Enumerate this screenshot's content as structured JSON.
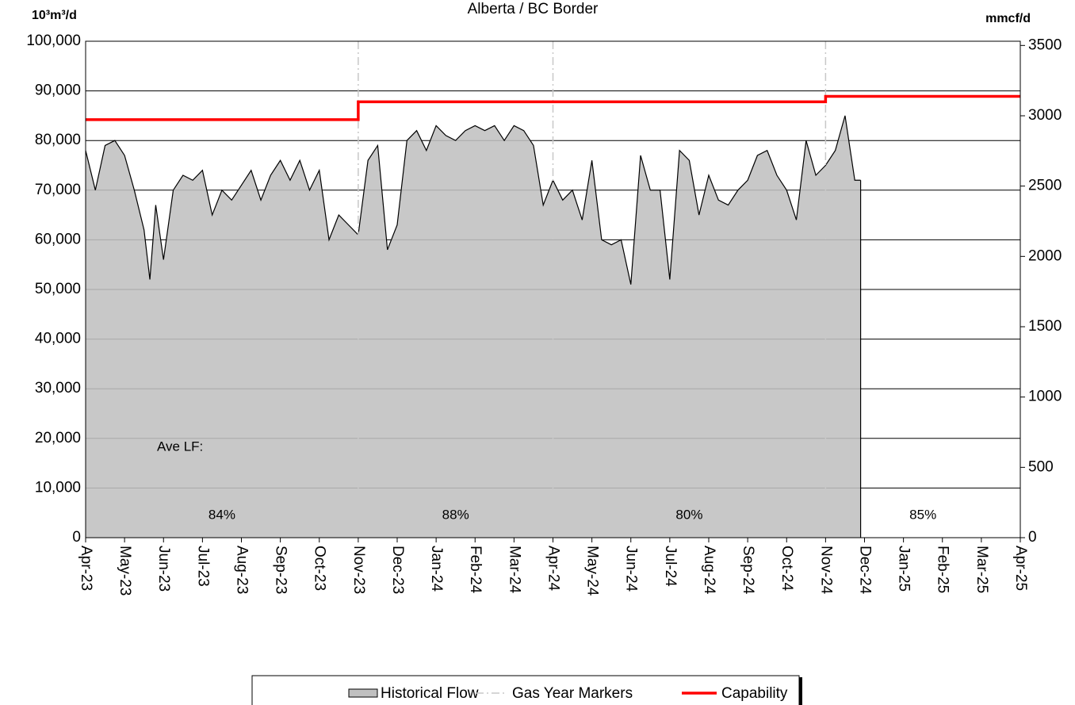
{
  "chart_data": {
    "type": "area",
    "subtitle": "Alberta / BC Border",
    "y_label": "10³m³/d",
    "y2_label": "mmcf/d",
    "annotation": "Ave LF:",
    "lf_labels": [
      "84%",
      "88%",
      "80%",
      "85%"
    ],
    "xlim": [
      0,
      24
    ],
    "xticks": [
      {
        "value": 0,
        "label": "Apr-23"
      },
      {
        "value": 1,
        "label": "May-23"
      },
      {
        "value": 2,
        "label": "Jun-23"
      },
      {
        "value": 3,
        "label": "Jul-23"
      },
      {
        "value": 4,
        "label": "Aug-23"
      },
      {
        "value": 5,
        "label": "Sep-23"
      },
      {
        "value": 6,
        "label": "Oct-23"
      },
      {
        "value": 7,
        "label": "Nov-23"
      },
      {
        "value": 8,
        "label": "Dec-23"
      },
      {
        "value": 9,
        "label": "Jan-24"
      },
      {
        "value": 10,
        "label": "Feb-24"
      },
      {
        "value": 11,
        "label": "Mar-24"
      },
      {
        "value": 12,
        "label": "Apr-24"
      },
      {
        "value": 13,
        "label": "May-24"
      },
      {
        "value": 14,
        "label": "Jun-24"
      },
      {
        "value": 15,
        "label": "Jul-24"
      },
      {
        "value": 16,
        "label": "Aug-24"
      },
      {
        "value": 17,
        "label": "Sep-24"
      },
      {
        "value": 18,
        "label": "Oct-24"
      },
      {
        "value": 19,
        "label": "Nov-24"
      },
      {
        "value": 20,
        "label": "Dec-24"
      },
      {
        "value": 21,
        "label": "Jan-25"
      },
      {
        "value": 22,
        "label": "Feb-25"
      },
      {
        "value": 23,
        "label": "Mar-25"
      },
      {
        "value": 24,
        "label": "Apr-25"
      }
    ],
    "ylim": [
      0,
      100000
    ],
    "yticks": [
      0,
      {
        "value": 10000,
        "label": "10,000"
      },
      {
        "value": 20000,
        "label": "20,000"
      },
      {
        "value": 30000,
        "label": "30,000"
      },
      {
        "value": 40000,
        "label": "40,000"
      },
      {
        "value": 50000,
        "label": "50,000"
      },
      {
        "value": 60000,
        "label": "60,000"
      },
      {
        "value": 70000,
        "label": "70,000"
      },
      {
        "value": 80000,
        "label": "80,000"
      },
      {
        "value": 90000,
        "label": "90,000"
      },
      {
        "value": 100000,
        "label": "100,000"
      }
    ],
    "y2lim": [
      0,
      3530
    ],
    "y2ticks": [
      0,
      500,
      1000,
      1500,
      2000,
      2500,
      3000,
      3500
    ],
    "grid": true,
    "legend": "bottom",
    "markers": {
      "name": "Gas Year Markers",
      "color": "#c8c8c8",
      "x": [
        7,
        12,
        19
      ]
    },
    "series": [
      {
        "name": "Historical Flow",
        "color": "#c0c0c0",
        "x": [
          0,
          0.25,
          0.5,
          0.75,
          1,
          1.25,
          1.5,
          1.65,
          1.8,
          2,
          2.25,
          2.5,
          2.75,
          3,
          3.25,
          3.5,
          3.75,
          4,
          4.25,
          4.5,
          4.75,
          5,
          5.25,
          5.5,
          5.75,
          6,
          6.25,
          6.5,
          6.75,
          7,
          7.25,
          7.5,
          7.75,
          8,
          8.25,
          8.5,
          8.75,
          9,
          9.25,
          9.5,
          9.75,
          10,
          10.25,
          10.5,
          10.75,
          11,
          11.25,
          11.5,
          11.75,
          12,
          12.25,
          12.5,
          12.75,
          13,
          13.25,
          13.5,
          13.75,
          14,
          14.25,
          14.5,
          14.75,
          15,
          15.25,
          15.5,
          15.75,
          16,
          16.25,
          16.5,
          16.75,
          17,
          17.25,
          17.5,
          17.75,
          18,
          18.25,
          18.5,
          18.75,
          19,
          19.25,
          19.5,
          19.75,
          19.9
        ],
        "values": [
          78000,
          70000,
          79000,
          80000,
          77000,
          70000,
          62000,
          52000,
          67000,
          56000,
          70000,
          73000,
          72000,
          74000,
          65000,
          70000,
          68000,
          71000,
          74000,
          68000,
          73000,
          76000,
          72000,
          76000,
          70000,
          74000,
          60000,
          65000,
          63000,
          61000,
          76000,
          79000,
          58000,
          63000,
          80000,
          82000,
          78000,
          83000,
          81000,
          80000,
          82000,
          83000,
          82000,
          83000,
          80000,
          83000,
          82000,
          79000,
          67000,
          72000,
          68000,
          70000,
          64000,
          76000,
          60000,
          59000,
          60000,
          51000,
          77000,
          70000,
          70000,
          52000,
          78000,
          76000,
          65000,
          73000,
          68000,
          67000,
          70000,
          72000,
          77000,
          78000,
          73000,
          70000,
          64000,
          80000,
          73000,
          75000,
          78000,
          85000,
          72000,
          72000
        ]
      },
      {
        "name": "Capability",
        "color": "#ff0000",
        "type": "line",
        "x": [
          0,
          7,
          7,
          19,
          19,
          24
        ],
        "values": [
          84200,
          84200,
          87800,
          87800,
          88900,
          88900
        ]
      }
    ]
  }
}
